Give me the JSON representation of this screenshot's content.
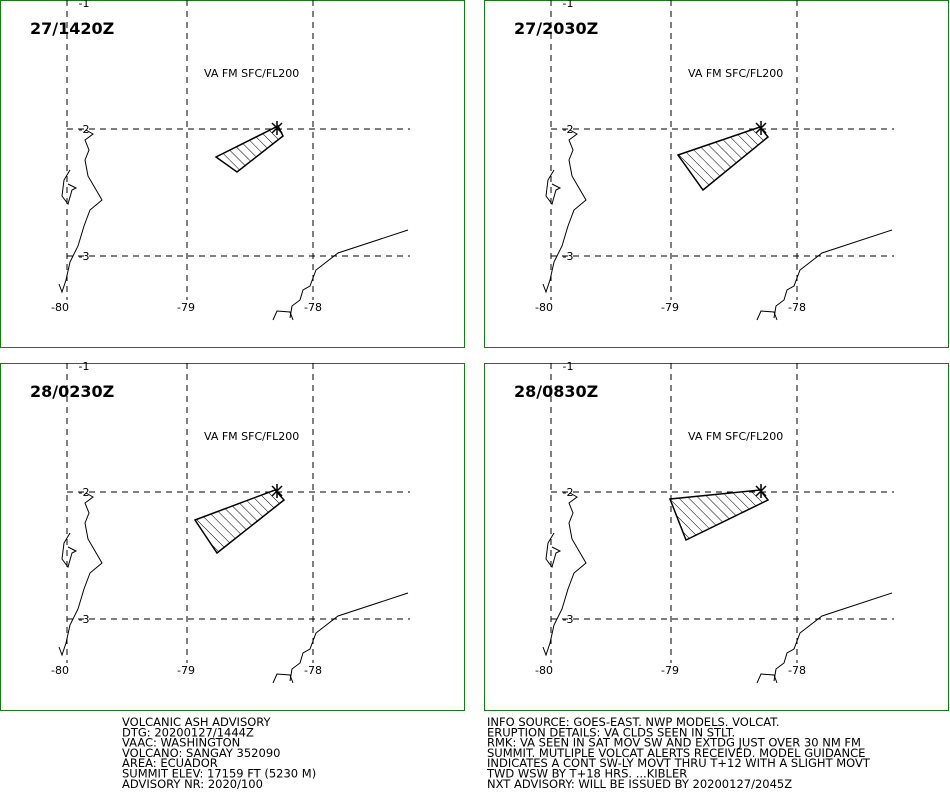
{
  "panels": [
    {
      "time": "27/1420Z",
      "level": "VA FM SFC/FL200",
      "lat_labels": [
        "-1",
        "-2",
        "-3"
      ],
      "lon_labels": [
        "-80",
        "-79",
        "-78"
      ]
    },
    {
      "time": "27/2030Z",
      "level": "VA FM SFC/FL200",
      "lat_labels": [
        "-1",
        "-2",
        "-3"
      ],
      "lon_labels": [
        "-80",
        "-79",
        "-78"
      ]
    },
    {
      "time": "28/0230Z",
      "level": "VA FM SFC/FL200",
      "lat_labels": [
        "-1",
        "-2",
        "-3"
      ],
      "lon_labels": [
        "-80",
        "-79",
        "-78"
      ]
    },
    {
      "time": "28/0830Z",
      "level": "VA FM SFC/FL200",
      "lat_labels": [
        "-1",
        "-2",
        "-3"
      ],
      "lon_labels": [
        "-80",
        "-79",
        "-78"
      ]
    }
  ],
  "advisory_left": [
    "VOLCANIC ASH ADVISORY",
    "DTG: 20200127/1444Z",
    "VAAC: WASHINGTON",
    "VOLCANO: SANGAY 352090",
    "AREA: ECUADOR",
    "SUMMIT ELEV: 17159 FT (5230 M)",
    "ADVISORY NR: 2020/100"
  ],
  "advisory_right": [
    "INFO SOURCE: GOES-EAST. NWP MODELS. VOLCAT.",
    "ERUPTION DETAILS: VA CLDS SEEN IN STLT.",
    "RMK: VA SEEN IN SAT MOV SW AND EXTDG JUST OVER 30 NM FM",
    "SUMMIT. MUTLIPLE VOLCAT ALERTS RECEIVED. MODEL GUIDANCE",
    "INDICATES A CONT SW-LY MOVT THRU T+12 WITH A SLIGHT MOVT",
    "TWD WSW BY T+18 HRS. ...KIBLER",
    "NXT ADVISORY: WILL BE ISSUED BY 20200127/2045Z"
  ]
}
